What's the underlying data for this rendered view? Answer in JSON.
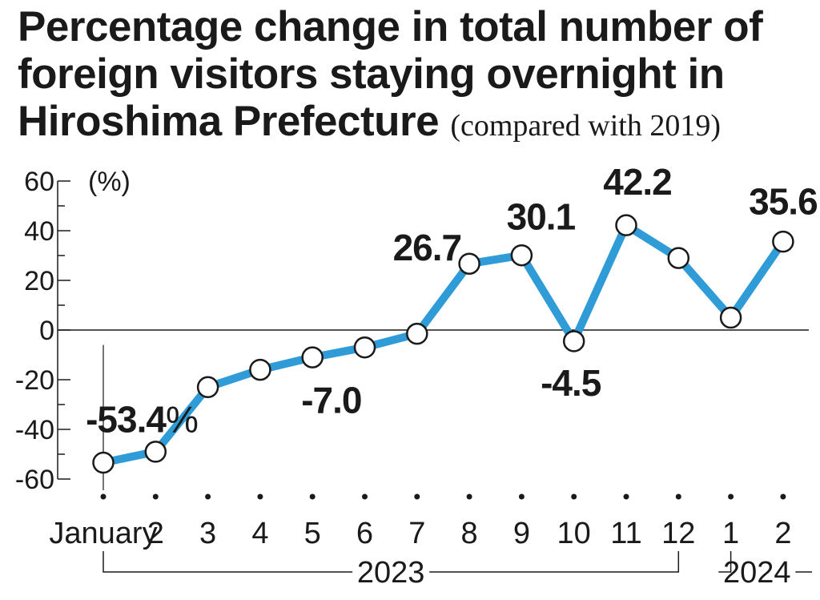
{
  "title": {
    "main": "Percentage change in total number of foreign visitors staying overnight in Hiroshima Prefecture",
    "sub": "(compared with 2019)"
  },
  "colors": {
    "line": "#2f9bd7",
    "text": "#1a1a1a",
    "marker_fill": "#ffffff"
  },
  "chart_data": {
    "type": "line",
    "title": "Percentage change in total number of foreign visitors staying overnight in Hiroshima Prefecture (compared with 2019)",
    "unit": "(%)",
    "ylim": [
      -60,
      60
    ],
    "yticks": [
      "60",
      "40",
      "20",
      "0",
      "-20",
      "-40",
      "-60"
    ],
    "categories": [
      "January",
      "2",
      "3",
      "4",
      "5",
      "6",
      "7",
      "8",
      "9",
      "10",
      "11",
      "12",
      "1",
      "2"
    ],
    "groups": [
      {
        "label": "2023",
        "from": 0,
        "to": 11
      },
      {
        "label": "2024",
        "from": 12,
        "to": 13
      }
    ],
    "series": [
      {
        "values": [
          -53.4,
          -49,
          -23,
          -16,
          -11,
          -7.0,
          -1.5,
          26.7,
          30.1,
          -4.5,
          42.2,
          29,
          5,
          35.6
        ]
      }
    ],
    "data_labels": [
      {
        "index": 0,
        "text": "-53.4",
        "suffix": "%"
      },
      {
        "index": 5,
        "text": "-7.0",
        "suffix": ""
      },
      {
        "index": 7,
        "text": "26.7",
        "suffix": ""
      },
      {
        "index": 8,
        "text": "30.1",
        "suffix": ""
      },
      {
        "index": 9,
        "text": "-4.5",
        "suffix": ""
      },
      {
        "index": 10,
        "text": "42.2",
        "suffix": ""
      },
      {
        "index": 13,
        "text": "35.6",
        "suffix": ""
      }
    ],
    "grid": false,
    "legend": "none"
  }
}
